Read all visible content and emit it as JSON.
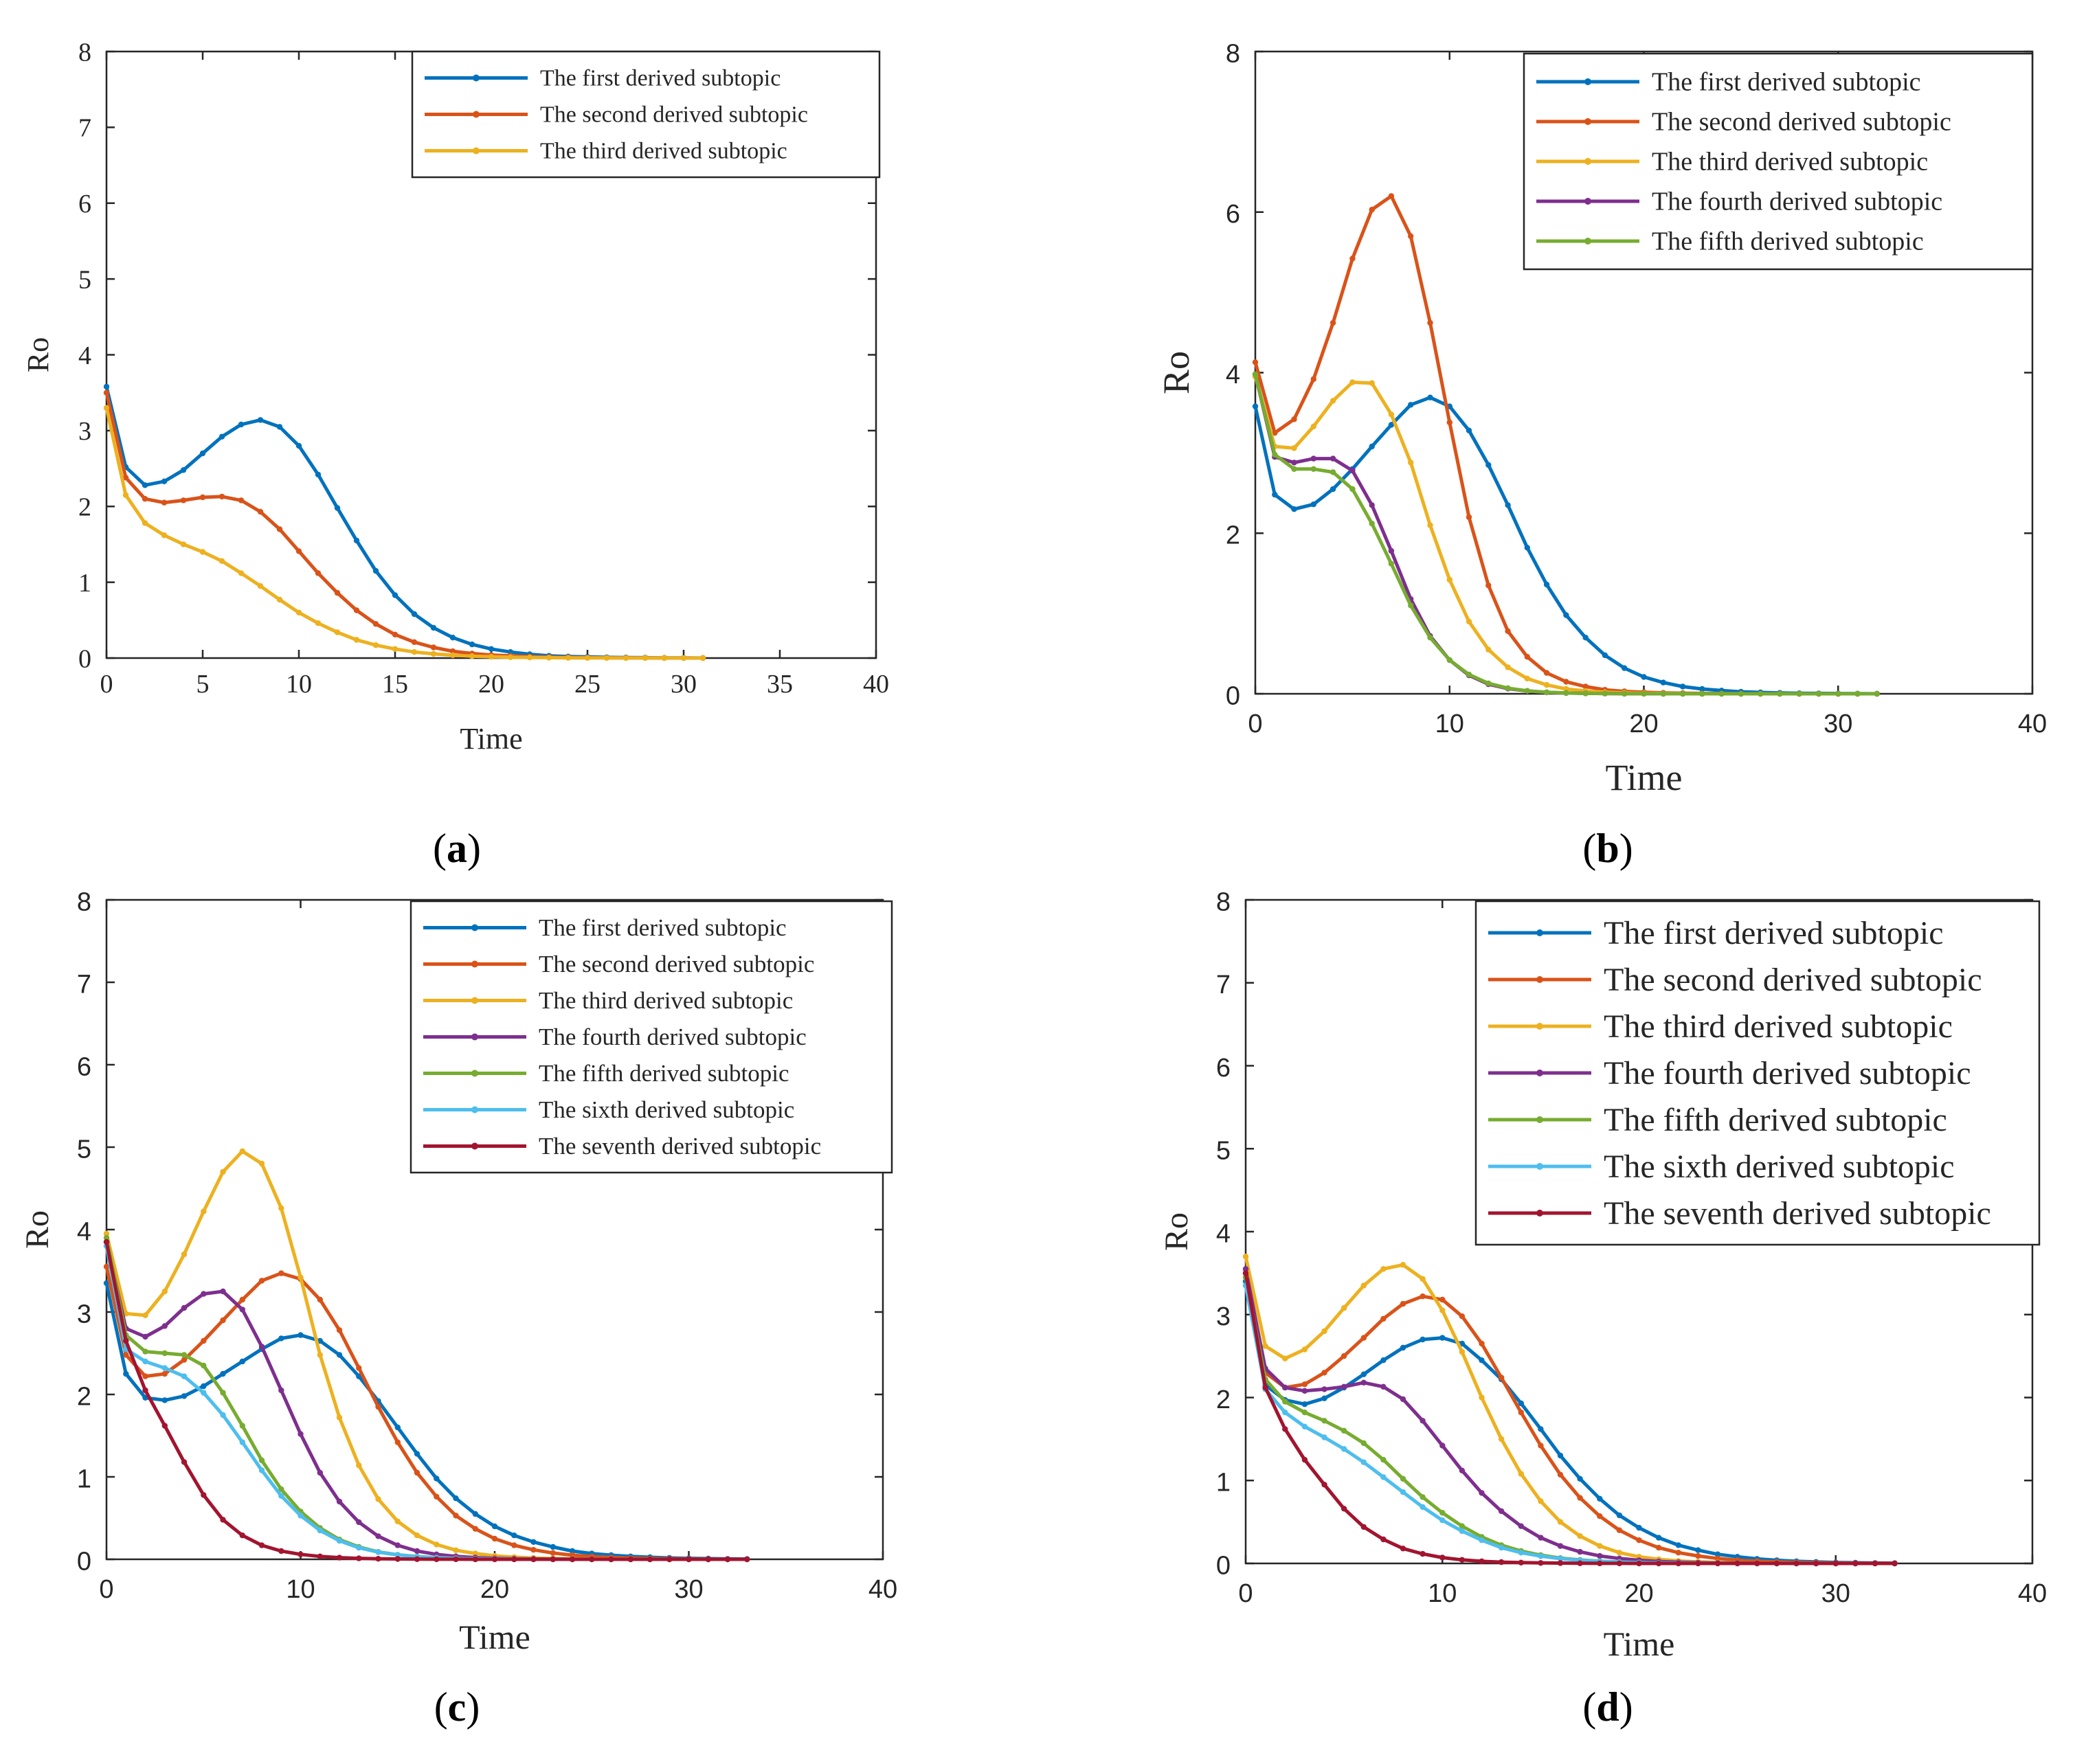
{
  "figure": {
    "panels": [
      "(a)",
      "(b)",
      "(c)",
      "(d)"
    ]
  },
  "chart_data": [
    {
      "panel": "a",
      "caption_letter": "a",
      "type": "line",
      "xlabel": "Time",
      "ylabel": "Ro",
      "xlim": [
        0,
        40
      ],
      "ylim": [
        0,
        8
      ],
      "xticks": [
        "0",
        "5",
        "10",
        "15",
        "20",
        "25",
        "30",
        "35",
        "40"
      ],
      "yticks": [
        "0",
        "1",
        "2",
        "3",
        "4",
        "5",
        "6",
        "7",
        "8"
      ],
      "legend_position": "top-right",
      "series": [
        {
          "name": "The first derived subtopic",
          "color": "#0072BD",
          "values": [
            3.58,
            2.52,
            2.28,
            2.33,
            2.48,
            2.7,
            2.92,
            3.08,
            3.14,
            3.05,
            2.8,
            2.42,
            1.98,
            1.55,
            1.15,
            0.83,
            0.58,
            0.4,
            0.27,
            0.18,
            0.12,
            0.08,
            0.05,
            0.03,
            0.02,
            0.015,
            0.01,
            0.007,
            0.005,
            0.003,
            0.002,
            0.001
          ]
        },
        {
          "name": "The second derived subtopic",
          "color": "#D95319",
          "values": [
            3.5,
            2.38,
            2.1,
            2.05,
            2.08,
            2.12,
            2.13,
            2.08,
            1.93,
            1.7,
            1.41,
            1.12,
            0.86,
            0.63,
            0.45,
            0.31,
            0.21,
            0.14,
            0.09,
            0.06,
            0.04,
            0.03,
            0.02,
            0.013,
            0.009,
            0.006,
            0.004,
            0.003,
            0.002,
            0.001,
            0.001,
            0.0
          ]
        },
        {
          "name": "The third derived subtopic",
          "color": "#EDB120",
          "values": [
            3.3,
            2.15,
            1.78,
            1.62,
            1.5,
            1.4,
            1.28,
            1.12,
            0.95,
            0.77,
            0.6,
            0.46,
            0.34,
            0.24,
            0.17,
            0.12,
            0.08,
            0.055,
            0.037,
            0.025,
            0.017,
            0.011,
            0.008,
            0.005,
            0.003,
            0.002,
            0.0015,
            0.001,
            0.0007,
            0.0005,
            0.0003,
            0.0002
          ]
        }
      ]
    },
    {
      "panel": "b",
      "caption_letter": "b",
      "type": "line",
      "xlabel": "Time",
      "ylabel": "Ro",
      "xlim": [
        0,
        40
      ],
      "ylim": [
        0,
        8
      ],
      "xticks": [
        "0",
        "10",
        "20",
        "30",
        "40"
      ],
      "yticks": [
        "0",
        "2",
        "4",
        "6",
        "8"
      ],
      "legend_position": "top-right",
      "series": [
        {
          "name": "The first derived subtopic",
          "color": "#0072BD",
          "values": [
            3.58,
            2.48,
            2.3,
            2.36,
            2.55,
            2.8,
            3.08,
            3.35,
            3.6,
            3.69,
            3.58,
            3.28,
            2.85,
            2.35,
            1.82,
            1.36,
            0.98,
            0.7,
            0.48,
            0.32,
            0.21,
            0.14,
            0.09,
            0.06,
            0.04,
            0.025,
            0.017,
            0.011,
            0.007,
            0.005,
            0.003,
            0.002,
            0.001
          ]
        },
        {
          "name": "The second derived subtopic",
          "color": "#D95319",
          "values": [
            4.13,
            3.25,
            3.42,
            3.92,
            4.62,
            5.42,
            6.03,
            6.2,
            5.7,
            4.62,
            3.38,
            2.2,
            1.35,
            0.78,
            0.46,
            0.26,
            0.15,
            0.09,
            0.05,
            0.03,
            0.02,
            0.012,
            0.008,
            0.005,
            0.003,
            0.002,
            0.001,
            0.001,
            0.0,
            0.0,
            0.0,
            0.0,
            0.0
          ]
        },
        {
          "name": "The third derived subtopic",
          "color": "#EDB120",
          "values": [
            3.95,
            3.08,
            3.06,
            3.33,
            3.65,
            3.88,
            3.87,
            3.48,
            2.88,
            2.1,
            1.42,
            0.9,
            0.55,
            0.33,
            0.19,
            0.11,
            0.06,
            0.035,
            0.02,
            0.012,
            0.007,
            0.004,
            0.002,
            0.001,
            0.001,
            0.0,
            0.0,
            0.0,
            0.0,
            0.0,
            0.0,
            0.0,
            0.0
          ]
        },
        {
          "name": "The fourth derived subtopic",
          "color": "#7E2F8E",
          "values": [
            3.98,
            2.95,
            2.88,
            2.93,
            2.93,
            2.78,
            2.35,
            1.78,
            1.18,
            0.72,
            0.42,
            0.23,
            0.12,
            0.065,
            0.035,
            0.018,
            0.009,
            0.005,
            0.003,
            0.001,
            0.001,
            0.0,
            0.0,
            0.0,
            0.0,
            0.0,
            0.0,
            0.0,
            0.0,
            0.0,
            0.0,
            0.0,
            0.0
          ]
        },
        {
          "name": "The fifth derived subtopic",
          "color": "#77AC30",
          "values": [
            3.98,
            2.98,
            2.8,
            2.8,
            2.76,
            2.55,
            2.12,
            1.62,
            1.1,
            0.7,
            0.42,
            0.24,
            0.13,
            0.07,
            0.037,
            0.019,
            0.01,
            0.005,
            0.003,
            0.001,
            0.001,
            0.0,
            0.0,
            0.0,
            0.0,
            0.0,
            0.0,
            0.0,
            0.0,
            0.0,
            0.0,
            0.0,
            0.0
          ]
        }
      ]
    },
    {
      "panel": "c",
      "caption_letter": "c",
      "type": "line",
      "xlabel": "Time",
      "ylabel": "Ro",
      "xlim": [
        0,
        40
      ],
      "ylim": [
        0,
        8
      ],
      "xticks": [
        "0",
        "10",
        "20",
        "30",
        "40"
      ],
      "yticks": [
        "0",
        "1",
        "2",
        "3",
        "4",
        "5",
        "6",
        "7",
        "8"
      ],
      "legend_position": "top-right",
      "series": [
        {
          "name": "The first derived subtopic",
          "color": "#0072BD",
          "values": [
            3.35,
            2.25,
            1.96,
            1.93,
            1.98,
            2.1,
            2.25,
            2.4,
            2.55,
            2.68,
            2.72,
            2.65,
            2.48,
            2.22,
            1.92,
            1.6,
            1.28,
            0.98,
            0.74,
            0.55,
            0.4,
            0.29,
            0.21,
            0.15,
            0.1,
            0.07,
            0.05,
            0.035,
            0.025,
            0.017,
            0.012,
            0.008,
            0.005,
            0.003
          ]
        },
        {
          "name": "The second derived subtopic",
          "color": "#D95319",
          "values": [
            3.55,
            2.48,
            2.22,
            2.25,
            2.42,
            2.65,
            2.9,
            3.15,
            3.38,
            3.47,
            3.4,
            3.15,
            2.78,
            2.32,
            1.85,
            1.42,
            1.05,
            0.76,
            0.53,
            0.37,
            0.25,
            0.17,
            0.115,
            0.077,
            0.05,
            0.033,
            0.022,
            0.014,
            0.009,
            0.006,
            0.004,
            0.002,
            0.001,
            0.001
          ]
        },
        {
          "name": "The third derived subtopic",
          "color": "#EDB120",
          "values": [
            3.95,
            2.98,
            2.96,
            3.25,
            3.7,
            4.22,
            4.7,
            4.95,
            4.8,
            4.26,
            3.42,
            2.48,
            1.72,
            1.14,
            0.73,
            0.46,
            0.29,
            0.18,
            0.11,
            0.07,
            0.042,
            0.026,
            0.016,
            0.01,
            0.006,
            0.004,
            0.002,
            0.001,
            0.001,
            0.0,
            0.0,
            0.0,
            0.0,
            0.0
          ]
        },
        {
          "name": "The fourth derived subtopic",
          "color": "#7E2F8E",
          "values": [
            3.85,
            2.8,
            2.7,
            2.83,
            3.05,
            3.22,
            3.25,
            3.03,
            2.58,
            2.05,
            1.52,
            1.05,
            0.7,
            0.45,
            0.28,
            0.17,
            0.1,
            0.06,
            0.036,
            0.021,
            0.012,
            0.007,
            0.004,
            0.002,
            0.001,
            0.001,
            0.0,
            0.0,
            0.0,
            0.0,
            0.0,
            0.0,
            0.0,
            0.0
          ]
        },
        {
          "name": "The fifth derived subtopic",
          "color": "#77AC30",
          "values": [
            3.9,
            2.72,
            2.52,
            2.5,
            2.48,
            2.35,
            2.02,
            1.62,
            1.2,
            0.85,
            0.58,
            0.38,
            0.24,
            0.15,
            0.09,
            0.055,
            0.033,
            0.02,
            0.012,
            0.007,
            0.004,
            0.002,
            0.001,
            0.001,
            0.0,
            0.0,
            0.0,
            0.0,
            0.0,
            0.0,
            0.0,
            0.0,
            0.0,
            0.0
          ]
        },
        {
          "name": "The sixth derived subtopic",
          "color": "#4DBEEE",
          "values": [
            3.8,
            2.55,
            2.4,
            2.32,
            2.22,
            2.02,
            1.75,
            1.42,
            1.08,
            0.77,
            0.53,
            0.35,
            0.225,
            0.14,
            0.087,
            0.053,
            0.032,
            0.019,
            0.011,
            0.007,
            0.004,
            0.002,
            0.001,
            0.001,
            0.0,
            0.0,
            0.0,
            0.0,
            0.0,
            0.0,
            0.0,
            0.0,
            0.0,
            0.0
          ]
        },
        {
          "name": "The seventh derived subtopic",
          "color": "#A2142F",
          "values": [
            3.85,
            2.65,
            2.05,
            1.62,
            1.18,
            0.78,
            0.48,
            0.29,
            0.17,
            0.1,
            0.06,
            0.035,
            0.02,
            0.012,
            0.007,
            0.004,
            0.002,
            0.001,
            0.001,
            0.0,
            0.0,
            0.0,
            0.0,
            0.0,
            0.0,
            0.0,
            0.0,
            0.0,
            0.0,
            0.0,
            0.0,
            0.0,
            0.0,
            0.0
          ]
        }
      ]
    },
    {
      "panel": "d",
      "caption_letter": "d",
      "type": "line",
      "xlabel": "Time",
      "ylabel": "Ro",
      "xlim": [
        0,
        40
      ],
      "ylim": [
        0,
        8
      ],
      "xticks": [
        "0",
        "10",
        "20",
        "30",
        "40"
      ],
      "yticks": [
        "0",
        "1",
        "2",
        "3",
        "4",
        "5",
        "6",
        "7",
        "8"
      ],
      "legend_position": "top-right",
      "series": [
        {
          "name": "The first derived subtopic",
          "color": "#0072BD",
          "values": [
            3.4,
            2.15,
            1.97,
            1.92,
            1.99,
            2.12,
            2.28,
            2.45,
            2.6,
            2.7,
            2.72,
            2.65,
            2.45,
            2.22,
            1.93,
            1.62,
            1.3,
            1.02,
            0.78,
            0.58,
            0.43,
            0.31,
            0.22,
            0.16,
            0.11,
            0.08,
            0.055,
            0.038,
            0.026,
            0.018,
            0.012,
            0.008,
            0.005,
            0.003
          ]
        },
        {
          "name": "The second derived subtopic",
          "color": "#D95319",
          "values": [
            3.5,
            2.3,
            2.12,
            2.16,
            2.3,
            2.5,
            2.72,
            2.95,
            3.13,
            3.22,
            3.18,
            2.98,
            2.65,
            2.24,
            1.82,
            1.42,
            1.07,
            0.79,
            0.57,
            0.4,
            0.28,
            0.19,
            0.13,
            0.09,
            0.06,
            0.04,
            0.027,
            0.018,
            0.012,
            0.008,
            0.005,
            0.003,
            0.002,
            0.001
          ]
        },
        {
          "name": "The third derived subtopic",
          "color": "#EDB120",
          "values": [
            3.7,
            2.62,
            2.47,
            2.58,
            2.8,
            3.08,
            3.35,
            3.55,
            3.6,
            3.43,
            3.05,
            2.55,
            2.0,
            1.5,
            1.08,
            0.75,
            0.5,
            0.33,
            0.21,
            0.13,
            0.08,
            0.05,
            0.03,
            0.019,
            0.012,
            0.007,
            0.004,
            0.003,
            0.002,
            0.001,
            0.001,
            0.0,
            0.0,
            0.0
          ]
        },
        {
          "name": "The fourth derived subtopic",
          "color": "#7E2F8E",
          "values": [
            3.55,
            2.35,
            2.12,
            2.08,
            2.1,
            2.13,
            2.18,
            2.13,
            1.98,
            1.72,
            1.42,
            1.12,
            0.85,
            0.63,
            0.45,
            0.31,
            0.21,
            0.14,
            0.09,
            0.06,
            0.038,
            0.024,
            0.015,
            0.009,
            0.006,
            0.004,
            0.002,
            0.001,
            0.001,
            0.0,
            0.0,
            0.0,
            0.0,
            0.0
          ]
        },
        {
          "name": "The fifth derived subtopic",
          "color": "#77AC30",
          "values": [
            3.45,
            2.22,
            1.95,
            1.82,
            1.72,
            1.6,
            1.45,
            1.25,
            1.02,
            0.8,
            0.61,
            0.45,
            0.32,
            0.22,
            0.15,
            0.1,
            0.065,
            0.042,
            0.027,
            0.017,
            0.011,
            0.007,
            0.004,
            0.003,
            0.002,
            0.001,
            0.001,
            0.0,
            0.0,
            0.0,
            0.0,
            0.0,
            0.0,
            0.0
          ]
        },
        {
          "name": "The sixth derived subtopic",
          "color": "#4DBEEE",
          "values": [
            3.35,
            2.1,
            1.82,
            1.65,
            1.52,
            1.38,
            1.22,
            1.04,
            0.86,
            0.68,
            0.52,
            0.39,
            0.28,
            0.19,
            0.13,
            0.088,
            0.058,
            0.038,
            0.025,
            0.016,
            0.01,
            0.006,
            0.004,
            0.002,
            0.001,
            0.001,
            0.0,
            0.0,
            0.0,
            0.0,
            0.0,
            0.0,
            0.0,
            0.0
          ]
        },
        {
          "name": "The seventh derived subtopic",
          "color": "#A2142F",
          "values": [
            3.5,
            2.12,
            1.62,
            1.25,
            0.95,
            0.66,
            0.44,
            0.29,
            0.18,
            0.115,
            0.07,
            0.043,
            0.026,
            0.016,
            0.01,
            0.006,
            0.004,
            0.002,
            0.001,
            0.001,
            0.0,
            0.0,
            0.0,
            0.0,
            0.0,
            0.0,
            0.0,
            0.0,
            0.0,
            0.0,
            0.0,
            0.0,
            0.0,
            0.0
          ]
        }
      ]
    }
  ]
}
